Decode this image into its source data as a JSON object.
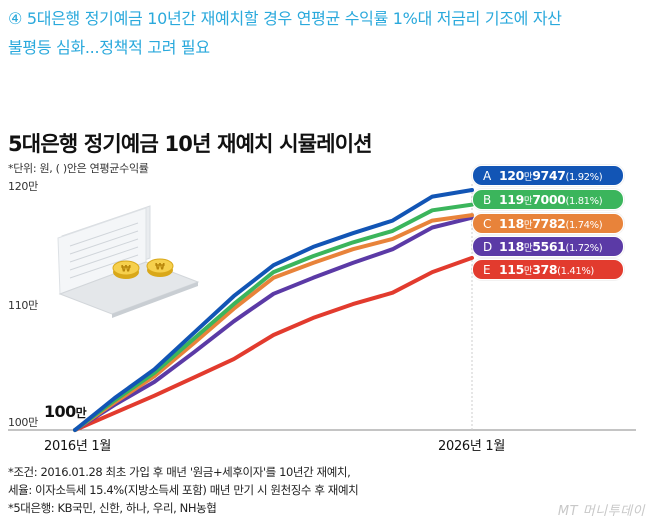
{
  "headline": {
    "line1": "④ 5대은행 정기예금 10년간 재예치할 경우 연평균 수익률 1%대 저금리 기조에 자산",
    "line2": "불평등 심화...정책적 고려 필요"
  },
  "chart_data": {
    "type": "line",
    "title": "5대은행 정기예금 10년 재예치 시뮬레이션",
    "unit_note": "*단위: 원, ( )안은 연평균수익률",
    "y_tick_labels": [
      "120만",
      "110만",
      "100만"
    ],
    "y_ticks": [
      1200000,
      1100000,
      1000000
    ],
    "ylim": [
      1000000,
      1215000
    ],
    "x_tick_labels": [
      "2016년 1월",
      "2026년 1월"
    ],
    "x": [
      2016,
      2017,
      2018,
      2019,
      2020,
      2021,
      2022,
      2023,
      2024,
      2025,
      2026
    ],
    "start_label": {
      "big": "100",
      "small": "만"
    },
    "series": [
      {
        "key": "A",
        "color": "#1255b5",
        "final_man": "120",
        "final_rest": "9747",
        "rate": "(1.92%)",
        "values": [
          1000000,
          1028000,
          1053000,
          1085000,
          1117000,
          1144000,
          1160000,
          1172000,
          1183000,
          1204000,
          1209747
        ]
      },
      {
        "key": "B",
        "color": "#3bb55c",
        "final_man": "119",
        "final_rest": "7000",
        "rate": "(1.81%)",
        "values": [
          1000000,
          1026000,
          1050000,
          1080000,
          1110000,
          1138000,
          1152000,
          1164000,
          1174000,
          1192000,
          1197000
        ]
      },
      {
        "key": "C",
        "color": "#e8833a",
        "final_man": "118",
        "final_rest": "7782",
        "rate": "(1.74%)",
        "values": [
          1000000,
          1024000,
          1047000,
          1076000,
          1106000,
          1133000,
          1146000,
          1158000,
          1167000,
          1183000,
          1187782
        ]
      },
      {
        "key": "D",
        "color": "#5b3aa6",
        "final_man": "118",
        "final_rest": "5561",
        "rate": "(1.72%)",
        "values": [
          1000000,
          1022000,
          1042000,
          1068000,
          1095000,
          1119000,
          1133000,
          1146000,
          1158000,
          1177000,
          1185561
        ]
      },
      {
        "key": "E",
        "color": "#e23b2e",
        "final_man": "115",
        "final_rest": "378",
        "rate": "(1.41%)",
        "values": [
          1000000,
          1015000,
          1030000,
          1046000,
          1062000,
          1083000,
          1098000,
          1110000,
          1120000,
          1138000,
          1150378
        ]
      }
    ]
  },
  "footnote": {
    "line1": "*조건: 2016.01.28 최초 가입 후 매년 '원금+세후이자'를 10년간 재예치,",
    "line2": "세율: 이자소득세 15.4%(지방소득세 포함) 매년 만기 시 원천징수 후 재예치",
    "line3": "*5대은행: KB국민, 신한, 하나, 우리, NH농협"
  },
  "watermark": "MT 머니투데이"
}
